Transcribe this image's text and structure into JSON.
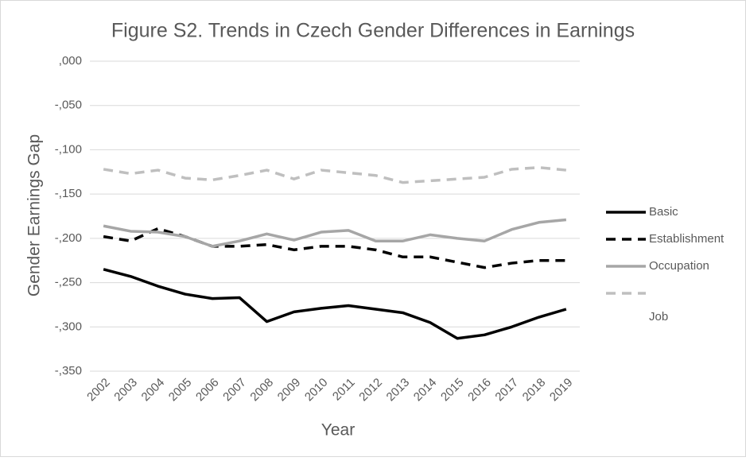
{
  "chart_data": {
    "type": "line",
    "title": "Figure S2. Trends in Czech Gender Differences in Earnings",
    "x_label": "Year",
    "y_label": "Gender Earnings Gap",
    "categories": [
      "2002",
      "2003",
      "2004",
      "2005",
      "2006",
      "2007",
      "2008",
      "2009",
      "2010",
      "2011",
      "2012",
      "2013",
      "2014",
      "2015",
      "2016",
      "2017",
      "2018",
      "2019"
    ],
    "series": [
      {
        "name": "Basic",
        "color": "#000000",
        "dash": "solid",
        "values": [
          -0.235,
          -0.243,
          -0.254,
          -0.263,
          -0.268,
          -0.267,
          -0.294,
          -0.283,
          -0.279,
          -0.276,
          -0.28,
          -0.284,
          -0.295,
          -0.313,
          -0.309,
          -0.3,
          -0.289,
          -0.28
        ]
      },
      {
        "name": "Establishment",
        "color": "#000000",
        "dash": "dashed",
        "values": [
          -0.198,
          -0.203,
          -0.189,
          -0.198,
          -0.209,
          -0.209,
          -0.207,
          -0.213,
          -0.209,
          -0.209,
          -0.213,
          -0.221,
          -0.221,
          -0.227,
          -0.233,
          -0.228,
          -0.225,
          -0.225
        ]
      },
      {
        "name": "Occupation",
        "color": "#a6a6a6",
        "dash": "solid",
        "values": [
          -0.186,
          -0.192,
          -0.193,
          -0.198,
          -0.209,
          -0.203,
          -0.195,
          -0.202,
          -0.193,
          -0.191,
          -0.203,
          -0.203,
          -0.196,
          -0.2,
          -0.203,
          -0.19,
          -0.182,
          -0.179
        ]
      },
      {
        "name": "Job",
        "color": "#bfbfbf",
        "dash": "dashed",
        "values": [
          -0.122,
          -0.127,
          -0.123,
          -0.132,
          -0.134,
          -0.129,
          -0.123,
          -0.133,
          -0.123,
          -0.126,
          -0.129,
          -0.137,
          -0.135,
          -0.133,
          -0.131,
          -0.122,
          -0.12,
          -0.123
        ]
      }
    ],
    "ylim": [
      -0.35,
      0
    ],
    "yticks": [
      {
        "value": 0,
        "label": ",000"
      },
      {
        "value": -0.05,
        "label": "-,050"
      },
      {
        "value": -0.1,
        "label": "-,100"
      },
      {
        "value": -0.15,
        "label": "-,150"
      },
      {
        "value": -0.2,
        "label": "-,200"
      },
      {
        "value": -0.25,
        "label": "-,250"
      },
      {
        "value": -0.3,
        "label": "-,300"
      },
      {
        "value": -0.35,
        "label": "-,350"
      }
    ],
    "grid": true,
    "legend": "right"
  }
}
